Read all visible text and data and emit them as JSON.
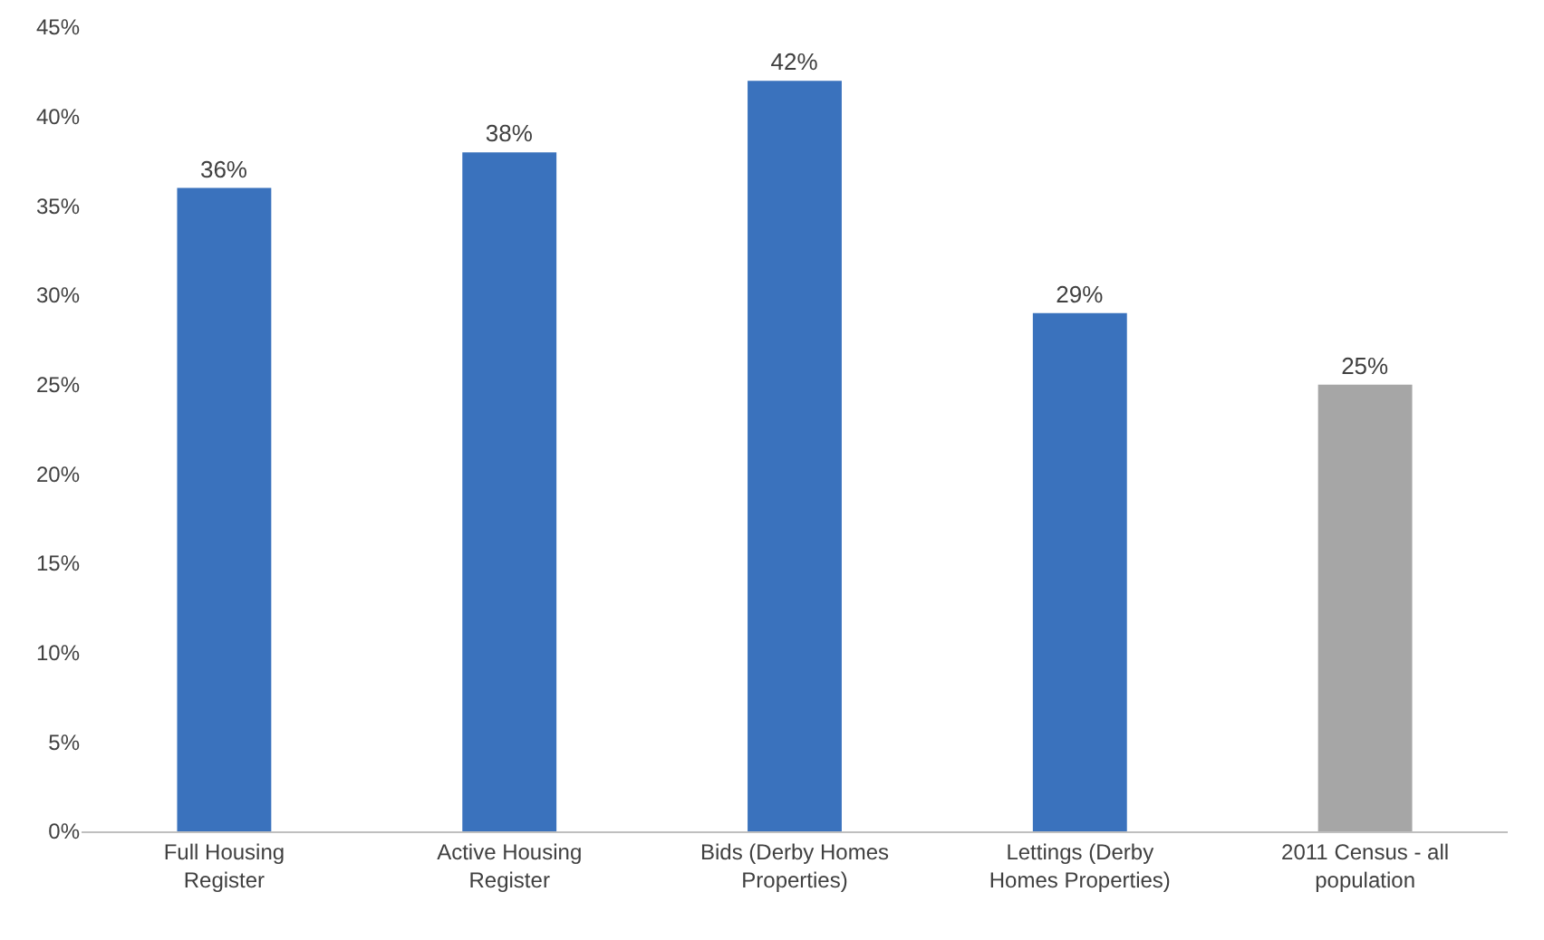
{
  "chart_data": {
    "type": "bar",
    "categories": [
      "Full Housing Register",
      "Active Housing Register",
      "Bids (Derby Homes Properties)",
      "Lettings (Derby Homes Properties)",
      "2011 Census - all population"
    ],
    "values": [
      36,
      38,
      42,
      29,
      25
    ],
    "colors": [
      "#3a72bd",
      "#3a72bd",
      "#3a72bd",
      "#3a72bd",
      "#a6a6a6"
    ],
    "value_labels": [
      "36%",
      "38%",
      "42%",
      "29%",
      "25%"
    ],
    "ylim": [
      0,
      45
    ],
    "yticks": [
      {
        "value": 0,
        "label": "0%"
      },
      {
        "value": 5,
        "label": "5%"
      },
      {
        "value": 10,
        "label": "10%"
      },
      {
        "value": 15,
        "label": "15%"
      },
      {
        "value": 20,
        "label": "20%"
      },
      {
        "value": 25,
        "label": "25%"
      },
      {
        "value": 30,
        "label": "30%"
      },
      {
        "value": 35,
        "label": "35%"
      },
      {
        "value": 40,
        "label": "40%"
      },
      {
        "value": 45,
        "label": "45%"
      }
    ],
    "grid": false
  }
}
